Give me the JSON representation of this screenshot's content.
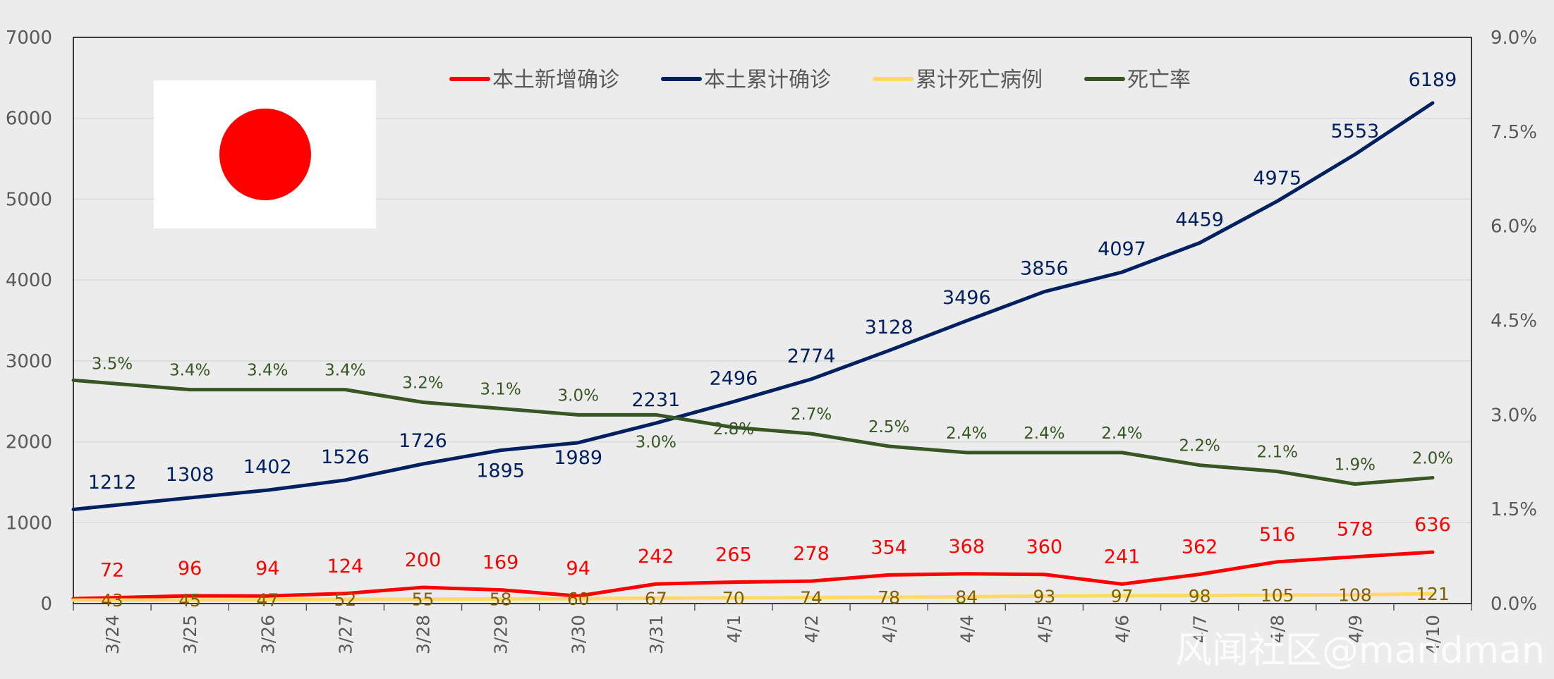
{
  "chart_data": {
    "type": "line",
    "categories": [
      "3/24",
      "3/25",
      "3/26",
      "3/27",
      "3/28",
      "3/29",
      "3/30",
      "3/31",
      "4/1",
      "4/2",
      "4/3",
      "4/4",
      "4/5",
      "4/6",
      "4/7",
      "4/8",
      "4/9",
      "4/10"
    ],
    "y_left": {
      "ticks": [
        "0",
        "1000",
        "2000",
        "3000",
        "4000",
        "5000",
        "6000",
        "7000"
      ],
      "ylim": [
        0,
        7000
      ]
    },
    "y_right": {
      "ticks": [
        "0.0%",
        "1.5%",
        "3.0%",
        "4.5%",
        "6.0%",
        "7.5%",
        "9.0%"
      ],
      "ylim": [
        0,
        0.09
      ]
    },
    "grid": "horizontal",
    "legend_position": "top-center",
    "series": [
      {
        "name": "本土新增确诊",
        "axis": "left",
        "color": "#ff0000",
        "values": [
          72,
          96,
          94,
          124,
          200,
          169,
          94,
          242,
          265,
          278,
          354,
          368,
          360,
          241,
          362,
          516,
          578,
          636
        ],
        "labels": [
          "72",
          "96",
          "94",
          "124",
          "200",
          "169",
          "94",
          "242",
          "265",
          "278",
          "354",
          "368",
          "360",
          "241",
          "362",
          "516",
          "578",
          "636"
        ],
        "label_color": "#ff0000"
      },
      {
        "name": "本土累计确诊",
        "axis": "left",
        "color": "#002060",
        "values": [
          1212,
          1308,
          1402,
          1526,
          1726,
          1895,
          1989,
          2231,
          2496,
          2774,
          3128,
          3496,
          3856,
          4097,
          4459,
          4975,
          5553,
          6189
        ],
        "labels": [
          "1212",
          "1308",
          "1402",
          "1526",
          "1726",
          "1895",
          "1989",
          "2231",
          "2496",
          "2774",
          "3128",
          "3496",
          "3856",
          "4097",
          "4459",
          "4975",
          "5553",
          "6189"
        ],
        "label_color": "#002060"
      },
      {
        "name": "累计死亡病例",
        "axis": "left",
        "color": "#ffd966",
        "values": [
          43,
          45,
          47,
          52,
          55,
          58,
          60,
          67,
          70,
          74,
          78,
          84,
          93,
          97,
          98,
          105,
          108,
          121
        ],
        "labels": [
          "43",
          "45",
          "47",
          "52",
          "55",
          "58",
          "60",
          "67",
          "70",
          "74",
          "78",
          "84",
          "93",
          "97",
          "98",
          "105",
          "108",
          "121"
        ],
        "label_color": "#806000"
      },
      {
        "name": "死亡率",
        "axis": "right",
        "color": "#375623",
        "values": [
          0.035,
          0.034,
          0.034,
          0.034,
          0.032,
          0.031,
          0.03,
          0.03,
          0.028,
          0.027,
          0.025,
          0.024,
          0.024,
          0.024,
          0.022,
          0.021,
          0.019,
          0.02
        ],
        "labels": [
          "3.5%",
          "3.4%",
          "3.4%",
          "3.4%",
          "3.2%",
          "3.1%",
          "3.0%",
          "3.0%",
          "2.8%",
          "2.7%",
          "2.5%",
          "2.4%",
          "2.4%",
          "2.4%",
          "2.2%",
          "2.1%",
          "1.9%",
          "2.0%"
        ],
        "label_color": "#375623"
      }
    ]
  },
  "decorations": {
    "flag": {
      "name": "japan-flag",
      "field_color": "#ffffff",
      "disc_color": "#ff0000"
    },
    "watermark_text": "风闻社区@mandman"
  }
}
